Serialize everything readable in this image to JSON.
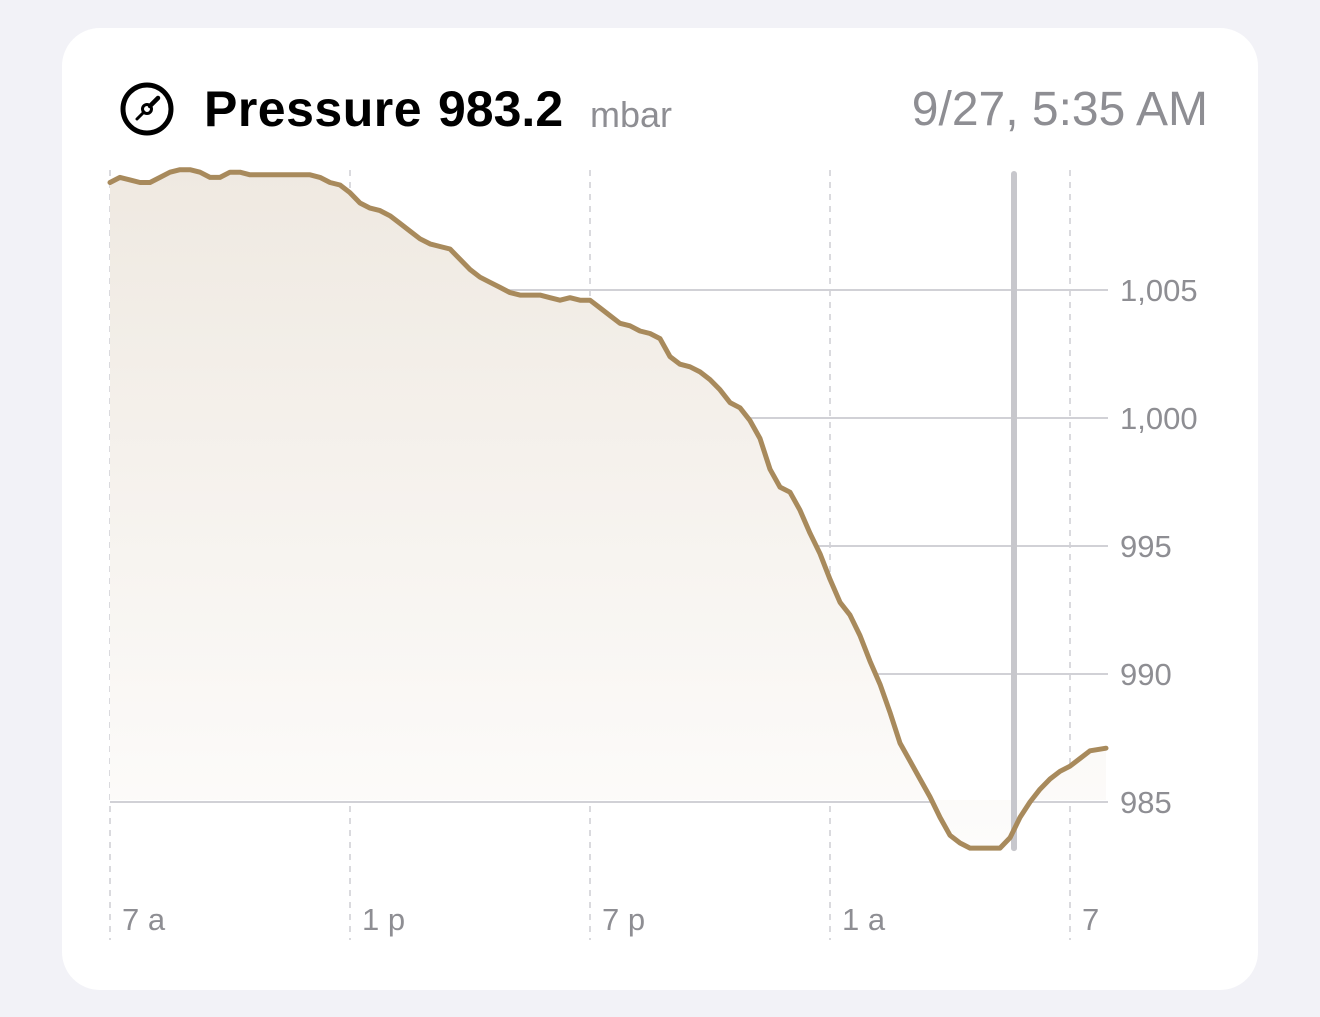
{
  "header": {
    "icon": "gauge-icon",
    "title": "Pressure",
    "value": "983.2",
    "unit": "mbar",
    "timestamp": "9/27, 5:35 AM"
  },
  "colors": {
    "line": "#a88a5c",
    "fill_top": "#efe9e1",
    "fill_bottom": "#fdfcfb",
    "grid": "#d1d1d6",
    "selection": "#c7c7cc",
    "label": "#8e8e93"
  },
  "chart_data": {
    "type": "area",
    "title": "Pressure",
    "unit": "mbar",
    "xlabel": "",
    "ylabel": "",
    "x_ticks": [
      {
        "label": "7 a",
        "hour": 0
      },
      {
        "label": "1 p",
        "hour": 6
      },
      {
        "label": "7 p",
        "hour": 12
      },
      {
        "label": "1 a",
        "hour": 18
      },
      {
        "label": "7",
        "hour": 24
      }
    ],
    "y_ticks": [
      {
        "label": "1,005",
        "value": 1005
      },
      {
        "label": "1,000",
        "value": 1000
      },
      {
        "label": "995",
        "value": 995
      },
      {
        "label": "990",
        "value": 990
      },
      {
        "label": "985",
        "value": 985
      }
    ],
    "xlim": [
      0,
      24.9
    ],
    "ylim": [
      982,
      1009.6
    ],
    "selected_hour": 22.6,
    "selected_value": 983.2,
    "series": [
      {
        "points": [
          [
            0,
            1009.2
          ],
          [
            0.25,
            1009.4
          ],
          [
            0.5,
            1009.3
          ],
          [
            0.75,
            1009.2
          ],
          [
            1.0,
            1009.2
          ],
          [
            1.25,
            1009.4
          ],
          [
            1.5,
            1009.6
          ],
          [
            1.75,
            1009.7
          ],
          [
            2.0,
            1009.7
          ],
          [
            2.25,
            1009.6
          ],
          [
            2.5,
            1009.4
          ],
          [
            2.75,
            1009.4
          ],
          [
            3.0,
            1009.6
          ],
          [
            3.25,
            1009.6
          ],
          [
            3.5,
            1009.5
          ],
          [
            3.75,
            1009.5
          ],
          [
            4.0,
            1009.5
          ],
          [
            4.5,
            1009.5
          ],
          [
            5.0,
            1009.5
          ],
          [
            5.25,
            1009.4
          ],
          [
            5.5,
            1009.2
          ],
          [
            5.75,
            1009.1
          ],
          [
            6.0,
            1008.8
          ],
          [
            6.25,
            1008.4
          ],
          [
            6.5,
            1008.2
          ],
          [
            6.75,
            1008.1
          ],
          [
            7.0,
            1007.9
          ],
          [
            7.25,
            1007.6
          ],
          [
            7.5,
            1007.3
          ],
          [
            7.75,
            1007.0
          ],
          [
            8.0,
            1006.8
          ],
          [
            8.25,
            1006.7
          ],
          [
            8.5,
            1006.6
          ],
          [
            8.75,
            1006.2
          ],
          [
            9.0,
            1005.8
          ],
          [
            9.25,
            1005.5
          ],
          [
            9.5,
            1005.3
          ],
          [
            9.75,
            1005.1
          ],
          [
            10.0,
            1004.9
          ],
          [
            10.25,
            1004.8
          ],
          [
            10.5,
            1004.8
          ],
          [
            10.75,
            1004.8
          ],
          [
            11.0,
            1004.7
          ],
          [
            11.25,
            1004.6
          ],
          [
            11.5,
            1004.7
          ],
          [
            11.75,
            1004.6
          ],
          [
            12.0,
            1004.6
          ],
          [
            12.25,
            1004.3
          ],
          [
            12.5,
            1004.0
          ],
          [
            12.75,
            1003.7
          ],
          [
            13.0,
            1003.6
          ],
          [
            13.25,
            1003.4
          ],
          [
            13.5,
            1003.3
          ],
          [
            13.75,
            1003.1
          ],
          [
            14.0,
            1002.4
          ],
          [
            14.25,
            1002.1
          ],
          [
            14.5,
            1002.0
          ],
          [
            14.75,
            1001.8
          ],
          [
            15.0,
            1001.5
          ],
          [
            15.25,
            1001.1
          ],
          [
            15.5,
            1000.6
          ],
          [
            15.75,
            1000.4
          ],
          [
            16.0,
            999.9
          ],
          [
            16.25,
            999.2
          ],
          [
            16.5,
            998.0
          ],
          [
            16.75,
            997.3
          ],
          [
            17.0,
            997.1
          ],
          [
            17.25,
            996.4
          ],
          [
            17.5,
            995.5
          ],
          [
            17.75,
            994.7
          ],
          [
            18.0,
            993.7
          ],
          [
            18.25,
            992.8
          ],
          [
            18.5,
            992.3
          ],
          [
            18.75,
            991.5
          ],
          [
            19.0,
            990.5
          ],
          [
            19.25,
            989.6
          ],
          [
            19.5,
            988.5
          ],
          [
            19.75,
            987.3
          ],
          [
            20.0,
            986.6
          ],
          [
            20.25,
            985.9
          ],
          [
            20.5,
            985.2
          ],
          [
            20.75,
            984.4
          ],
          [
            21.0,
            983.7
          ],
          [
            21.25,
            983.4
          ],
          [
            21.5,
            983.2
          ],
          [
            21.75,
            983.2
          ],
          [
            22.0,
            983.2
          ],
          [
            22.25,
            983.2
          ],
          [
            22.5,
            983.6
          ],
          [
            22.75,
            984.4
          ],
          [
            23.0,
            985.0
          ],
          [
            23.25,
            985.5
          ],
          [
            23.5,
            985.9
          ],
          [
            23.75,
            986.2
          ],
          [
            24.0,
            986.4
          ],
          [
            24.25,
            986.7
          ],
          [
            24.5,
            987.0
          ],
          [
            24.9,
            987.1
          ]
        ]
      }
    ]
  }
}
